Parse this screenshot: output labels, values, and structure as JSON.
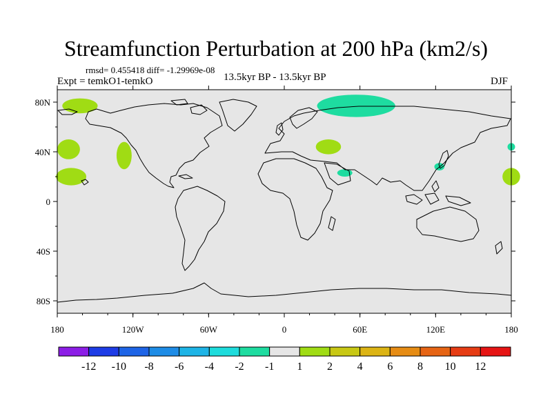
{
  "title": "Streamfunction Perturbation at 200 hPa (km2/s)",
  "stats": "rmsd= 0.455418 diff= -1.29969e-08",
  "left_label": "Expt = temkO1-temkO",
  "center_label": "13.5kyr BP - 13.5kyr BP",
  "right_label": "DJF",
  "map": {
    "projection": "cylindrical equidistant",
    "lon_range": [
      -180,
      180
    ],
    "lat_range": [
      -90,
      90
    ],
    "background_color": "#e6e6e6",
    "lon_ticks": [
      {
        "value": -180,
        "label": "180"
      },
      {
        "value": -120,
        "label": "120W"
      },
      {
        "value": -60,
        "label": "60W"
      },
      {
        "value": 0,
        "label": "0"
      },
      {
        "value": 60,
        "label": "60E"
      },
      {
        "value": 120,
        "label": "120E"
      },
      {
        "value": 180,
        "label": "180"
      }
    ],
    "lat_ticks": [
      {
        "value": 80,
        "label": "80N"
      },
      {
        "value": 40,
        "label": "40N"
      },
      {
        "value": 0,
        "label": "0"
      },
      {
        "value": -40,
        "label": "40S"
      },
      {
        "value": -80,
        "label": "80S"
      }
    ],
    "anomaly_regions": [
      {
        "lon": -162,
        "lat": 77,
        "rlon": 14,
        "rlat": 6,
        "color": "#a0dc14"
      },
      {
        "lon": -171,
        "lat": 42,
        "rlon": 9,
        "rlat": 8,
        "color": "#a0dc14"
      },
      {
        "lon": -169,
        "lat": 20,
        "rlon": 12,
        "rlat": 7,
        "color": "#a0dc14"
      },
      {
        "lon": -127,
        "lat": 37,
        "rlon": 6,
        "rlat": 11,
        "color": "#a0dc14"
      },
      {
        "lon": 35,
        "lat": 44,
        "rlon": 10,
        "rlat": 6,
        "color": "#a0dc14"
      },
      {
        "lon": 57,
        "lat": 77,
        "rlon": 31,
        "rlat": 9,
        "color": "#1edca0"
      },
      {
        "lon": 48,
        "lat": 23,
        "rlon": 6,
        "rlat": 3,
        "color": "#1edca0"
      },
      {
        "lon": 123,
        "lat": 28,
        "rlon": 4,
        "rlat": 3,
        "color": "#1edca0"
      },
      {
        "lon": 180,
        "lat": 44,
        "rlon": 3,
        "rlat": 3,
        "color": "#1edca0"
      },
      {
        "lon": 180,
        "lat": 20,
        "rlon": 7,
        "rlat": 7,
        "color": "#a0dc14"
      }
    ]
  },
  "colorbar": {
    "colors": [
      "#8c1ee6",
      "#1e3ce6",
      "#1e64e6",
      "#1e8ce6",
      "#1eb4e6",
      "#1edcdc",
      "#1edca0",
      "#e6e6e6",
      "#a0dc14",
      "#c8c814",
      "#dcb414",
      "#e68c14",
      "#e66414",
      "#e63c14",
      "#e61414"
    ],
    "labels": [
      "-12",
      "-10",
      "-8",
      "-6",
      "-4",
      "-2",
      "-1",
      "1",
      "2",
      "4",
      "6",
      "8",
      "10",
      "12"
    ]
  }
}
